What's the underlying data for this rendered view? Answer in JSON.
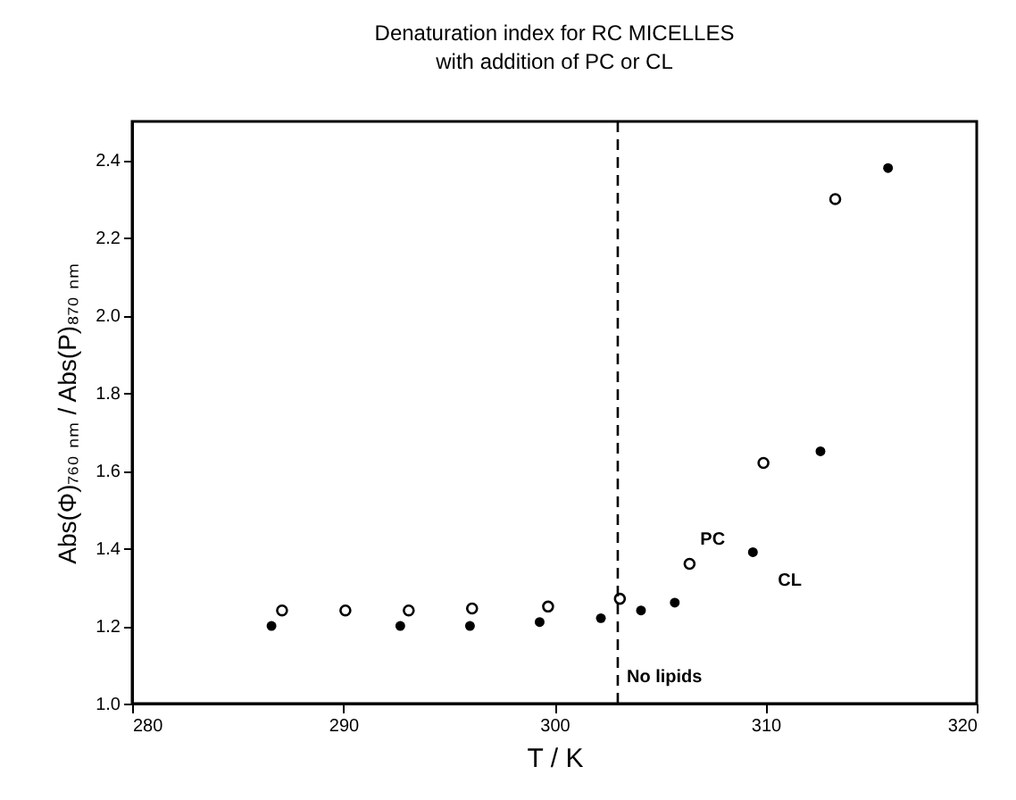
{
  "chart_data": {
    "type": "scatter",
    "title": "Denaturation index for RC MICELLES",
    "subtitle": "with addition of PC or CL",
    "xlabel": "T / K",
    "ylabel": "Abs(Φ)₇₆₀ ₙₘ / Abs(P)₈₇₀ ₙₘ",
    "xlim": [
      280,
      320
    ],
    "xticks": [
      280,
      290,
      300,
      310,
      320
    ],
    "ylim": [
      1.0,
      2.5
    ],
    "yticks": [
      "1.0",
      1.2,
      1.4,
      1.6,
      1.8,
      "2.0",
      2.2,
      2.4
    ],
    "marker": "circle",
    "grid": false,
    "ref_lines": [
      {
        "axis": "x",
        "value": 303,
        "label": "No lipids",
        "line_style": "dashed",
        "color": "#000000"
      }
    ],
    "series": [
      {
        "name": "CL",
        "color": "#000000",
        "x": [
          286.6,
          292.7,
          296.0,
          299.3,
          302.2,
          304.1,
          305.7,
          309.4,
          312.6,
          315.8
        ],
        "values": [
          1.2,
          1.2,
          1.2,
          1.21,
          1.22,
          1.24,
          1.26,
          1.39,
          1.65,
          2.38
        ]
      },
      {
        "name": "PC",
        "color": "#000000",
        "x": [
          287.1,
          290.1,
          293.1,
          296.1,
          299.7,
          303.1,
          306.4,
          309.9,
          313.3
        ],
        "values": [
          1.24,
          1.24,
          1.24,
          1.245,
          1.25,
          1.27,
          1.36,
          1.62,
          2.3
        ]
      }
    ]
  }
}
